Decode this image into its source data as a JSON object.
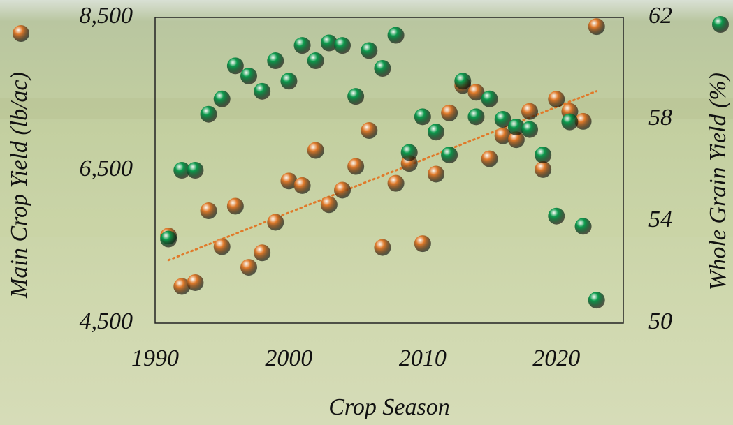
{
  "chart_data": {
    "type": "scatter",
    "x_label": "Crop Season",
    "y_label": "Main Crop Yield (lb/ac)",
    "y2_label": "Whole Grain Yield (%)",
    "x": [
      1991,
      1992,
      1993,
      1994,
      1995,
      1996,
      1997,
      1998,
      1999,
      2000,
      2001,
      2002,
      2003,
      2004,
      2005,
      2006,
      2007,
      2008,
      2009,
      2010,
      2011,
      2012,
      2013,
      2014,
      2015,
      2016,
      2017,
      2018,
      2019,
      2020,
      2021,
      2022,
      2023
    ],
    "series": [
      {
        "color": "#e07a2a",
        "axis": "y",
        "trendline": true,
        "values": [
          5640,
          4980,
          5030,
          5970,
          5500,
          6030,
          5230,
          5420,
          5820,
          6360,
          6300,
          6760,
          6050,
          6240,
          6550,
          7020,
          5490,
          6330,
          6590,
          5540,
          6450,
          7250,
          7610,
          7520,
          6650,
          6950,
          6900,
          7270,
          6510,
          7430,
          7270,
          7140,
          8380
        ]
      },
      {
        "color": "#0b9a4c",
        "axis": "y2",
        "trendline": false,
        "values": [
          53.3,
          56.0,
          56.0,
          58.2,
          58.8,
          60.1,
          59.7,
          59.1,
          60.3,
          59.5,
          60.9,
          60.3,
          61.0,
          60.9,
          58.9,
          60.7,
          60.0,
          61.3,
          56.7,
          58.1,
          57.5,
          56.6,
          59.5,
          58.1,
          58.8,
          58.0,
          57.7,
          57.6,
          56.6,
          54.2,
          57.9,
          53.8,
          50.9
        ]
      }
    ],
    "xlim": [
      1990,
      2025
    ],
    "xticks": [
      1990,
      2000,
      2010,
      2020
    ],
    "ylim": [
      4500,
      8500
    ],
    "yticks": [
      {
        "value": 4500,
        "label": "4,500"
      },
      {
        "value": 6500,
        "label": "6,500"
      },
      {
        "value": 8500,
        "label": "8,500"
      }
    ],
    "y2lim": [
      50,
      62
    ],
    "y2ticks": [
      50,
      54,
      58,
      62
    ]
  }
}
